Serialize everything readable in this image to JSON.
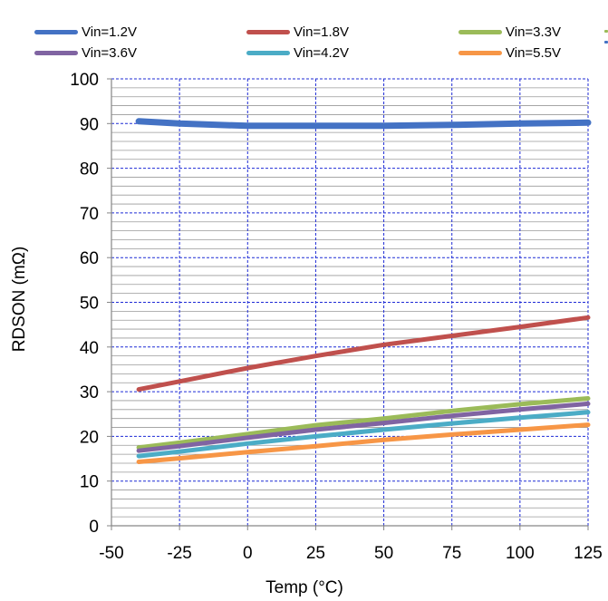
{
  "chart_data": {
    "type": "line",
    "xlabel": "Temp (°C)",
    "ylabel": "RDSON (mΩ)",
    "xlim": [
      -50,
      125
    ],
    "ylim": [
      0,
      100
    ],
    "x_ticks": [
      "-50",
      "-25",
      "0",
      "25",
      "50",
      "75",
      "100",
      "125"
    ],
    "y_ticks": [
      "0",
      "10",
      "20",
      "30",
      "40",
      "50",
      "60",
      "70",
      "80",
      "90",
      "100"
    ],
    "grid": true,
    "legend_position": "top",
    "x": [
      -40,
      -25,
      0,
      25,
      50,
      75,
      100,
      125
    ],
    "series": [
      {
        "name": "Vin=1.2V",
        "color": "#4472c4",
        "values": [
          90.5,
          90.0,
          89.5,
          89.5,
          89.5,
          89.7,
          90.0,
          90.2
        ]
      },
      {
        "name": "Vin=1.8V",
        "color": "#c0504d",
        "values": [
          30.5,
          32.3,
          35.3,
          38.0,
          40.5,
          42.5,
          44.5,
          46.6
        ]
      },
      {
        "name": "Vin=3.3V",
        "color": "#9bbb59",
        "values": [
          17.5,
          18.6,
          20.5,
          22.5,
          24.0,
          25.7,
          27.2,
          28.5
        ]
      },
      {
        "name": "Vin=3.6V",
        "color": "#8064a2",
        "values": [
          16.8,
          17.8,
          19.7,
          21.5,
          23.0,
          24.6,
          26.0,
          27.3
        ]
      },
      {
        "name": "Vin=4.2V",
        "color": "#4bacc6",
        "values": [
          15.6,
          16.6,
          18.4,
          20.0,
          21.5,
          22.9,
          24.2,
          25.4
        ]
      },
      {
        "name": "Vin=5.5V",
        "color": "#f79646",
        "values": [
          14.3,
          15.1,
          16.5,
          17.8,
          19.2,
          20.4,
          21.5,
          22.6
        ]
      }
    ]
  }
}
